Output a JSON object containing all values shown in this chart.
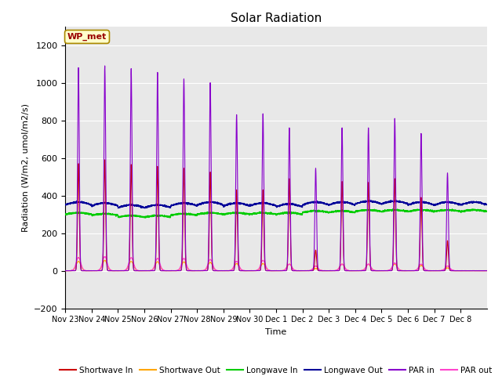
{
  "title": "Solar Radiation",
  "ylabel": "Radiation (W/m2, umol/m2/s)",
  "xlabel": "Time",
  "ylim": [
    -200,
    1300
  ],
  "yticks": [
    -200,
    0,
    200,
    400,
    600,
    800,
    1000,
    1200
  ],
  "fig_bg_color": "#ffffff",
  "plot_bg_color": "#e8e8e8",
  "n_days": 16,
  "day_labels": [
    "Nov 23",
    "Nov 24",
    "Nov 25",
    "Nov 26",
    "Nov 27",
    "Nov 28",
    "Nov 29",
    "Nov 30",
    "Dec 1",
    "Dec 2",
    "Dec 3",
    "Dec 4",
    "Dec 5",
    "Dec 6",
    "Dec 7",
    "Dec 8"
  ],
  "par_in_peaks": [
    1080,
    1090,
    1075,
    1055,
    1020,
    1000,
    830,
    835,
    760,
    545,
    760,
    760,
    810,
    730,
    520,
    0
  ],
  "sw_in_peaks": [
    570,
    590,
    565,
    555,
    545,
    525,
    430,
    430,
    490,
    110,
    475,
    470,
    490,
    390,
    160,
    0
  ],
  "par_out_peaks": [
    70,
    75,
    70,
    65,
    65,
    60,
    50,
    55,
    35,
    25,
    35,
    35,
    40,
    35,
    25,
    0
  ],
  "sw_out_peaks": [
    50,
    55,
    50,
    48,
    47,
    44,
    38,
    38,
    35,
    12,
    35,
    34,
    36,
    28,
    15,
    0
  ],
  "lw_in_values": [
    300,
    295,
    285,
    285,
    295,
    300,
    300,
    300,
    300,
    310,
    310,
    315,
    315,
    315,
    315,
    315
  ],
  "lw_out_values": [
    350,
    345,
    335,
    335,
    345,
    350,
    345,
    345,
    340,
    350,
    350,
    355,
    355,
    350,
    350,
    350
  ],
  "colors": {
    "sw_in": "#cc0000",
    "sw_out": "#ffa500",
    "lw_in": "#00cc00",
    "lw_out": "#000099",
    "par_in": "#8800cc",
    "par_out": "#ff44cc"
  },
  "annotation_text": "WP_met",
  "annotation_bg": "#ffffcc",
  "annotation_border": "#aa8800"
}
